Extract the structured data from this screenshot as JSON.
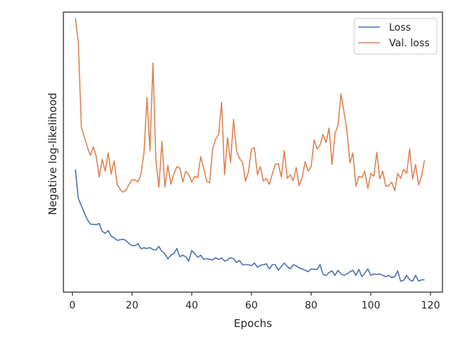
{
  "chart_data": {
    "type": "line",
    "xlabel": "Epochs",
    "ylabel": "Negative log-likelihood",
    "xlim": [
      -3,
      124
    ],
    "ylim": [
      0,
      100
    ],
    "xticks": [
      0,
      20,
      40,
      60,
      80,
      100,
      120
    ],
    "yticks_shown": false,
    "grid": false,
    "legend_position": "top-right",
    "series": [
      {
        "name": "Loss",
        "color": "#4c72b0",
        "x": [
          1,
          2,
          3,
          4,
          5,
          6,
          7,
          8,
          9,
          10,
          11,
          12,
          13,
          14,
          15,
          16,
          17,
          18,
          19,
          20,
          21,
          22,
          23,
          24,
          25,
          26,
          27,
          28,
          29,
          30,
          31,
          32,
          33,
          34,
          35,
          36,
          37,
          38,
          39,
          40,
          41,
          42,
          43,
          44,
          45,
          46,
          47,
          48,
          49,
          50,
          51,
          52,
          53,
          54,
          55,
          56,
          57,
          58,
          59,
          60,
          61,
          62,
          63,
          64,
          65,
          66,
          67,
          68,
          69,
          70,
          71,
          72,
          73,
          74,
          75,
          76,
          77,
          78,
          79,
          80,
          81,
          82,
          83,
          84,
          85,
          86,
          87,
          88,
          89,
          90,
          91,
          92,
          93,
          94,
          95,
          96,
          97,
          98,
          99,
          100,
          101,
          102,
          103,
          104,
          105,
          106,
          107,
          108,
          109,
          110,
          111,
          112,
          113,
          114,
          115,
          116,
          117,
          118
        ],
        "y": [
          43.8,
          33.4,
          30.9,
          28.4,
          25.9,
          24.3,
          24.2,
          24.1,
          24.5,
          21.7,
          21.0,
          22.0,
          20.0,
          19.4,
          18.5,
          18.7,
          18.9,
          18.4,
          17.3,
          16.6,
          16.6,
          17.3,
          15.5,
          15.8,
          15.6,
          15.9,
          15.2,
          15.1,
          16.3,
          14.5,
          13.7,
          11.9,
          13.2,
          13.7,
          15.6,
          12.7,
          13.2,
          12.6,
          11.1,
          14.9,
          13.7,
          12.4,
          13.2,
          11.7,
          12.0,
          11.7,
          11.5,
          12.3,
          11.7,
          12.2,
          11.1,
          11.5,
          12.3,
          12.0,
          10.6,
          11.3,
          9.8,
          9.8,
          9.8,
          9.4,
          10.4,
          8.9,
          9.6,
          9.8,
          10.1,
          8.3,
          9.8,
          9.8,
          7.8,
          9.1,
          10.4,
          9.1,
          8.3,
          9.8,
          9.4,
          8.6,
          8.3,
          7.8,
          7.3,
          8.3,
          8.1,
          8.1,
          9.8,
          6.3,
          6.0,
          7.0,
          7.6,
          6.0,
          7.8,
          6.5,
          6.0,
          6.5,
          7.3,
          7.8,
          6.0,
          8.1,
          5.5,
          6.8,
          8.3,
          6.0,
          6.5,
          6.3,
          6.5,
          6.0,
          5.5,
          6.0,
          5.2,
          5.5,
          7.6,
          3.9,
          4.2,
          6.0,
          4.4,
          3.9,
          6.0,
          3.9,
          4.4,
          4.4
        ]
      },
      {
        "name": "Val. loss",
        "color": "#dd8452",
        "x": [
          1,
          2,
          3,
          4,
          5,
          6,
          7,
          8,
          9,
          10,
          11,
          12,
          13,
          14,
          15,
          16,
          17,
          18,
          19,
          20,
          21,
          22,
          23,
          24,
          25,
          26,
          27,
          28,
          29,
          30,
          31,
          32,
          33,
          34,
          35,
          36,
          37,
          38,
          39,
          40,
          41,
          42,
          43,
          44,
          45,
          46,
          47,
          48,
          49,
          50,
          51,
          52,
          53,
          54,
          55,
          56,
          57,
          58,
          59,
          60,
          61,
          62,
          63,
          64,
          65,
          66,
          67,
          68,
          69,
          70,
          71,
          72,
          73,
          74,
          75,
          76,
          77,
          78,
          79,
          80,
          81,
          82,
          83,
          84,
          85,
          86,
          87,
          88,
          89,
          90,
          91,
          92,
          93,
          94,
          95,
          96,
          97,
          98,
          99,
          100,
          101,
          102,
          103,
          104,
          105,
          106,
          107,
          108,
          109,
          110,
          111,
          112,
          113,
          114,
          115,
          116,
          117,
          118
        ],
        "y": [
          97.9,
          89.1,
          58.9,
          55.5,
          51.9,
          48.9,
          51.9,
          48.4,
          41.1,
          47.4,
          43.2,
          49.7,
          42.2,
          46.9,
          38.5,
          36.7,
          35.7,
          36.4,
          38.5,
          40.1,
          40.1,
          39.3,
          42.2,
          49.7,
          69.5,
          50.5,
          81.8,
          46.6,
          37.5,
          53.9,
          37.5,
          45.3,
          38.5,
          42.2,
          44.8,
          44.3,
          39.3,
          43.2,
          41.9,
          39.3,
          41.4,
          40.9,
          48.4,
          44.3,
          39.6,
          39.1,
          51.1,
          54.7,
          56.3,
          67.7,
          41.9,
          55.2,
          46.4,
          61.7,
          50.5,
          47.7,
          46.4,
          39.6,
          43.0,
          51.1,
          51.6,
          41.9,
          44.8,
          39.6,
          40.6,
          38.5,
          42.2,
          45.6,
          45.9,
          41.1,
          50.5,
          40.6,
          41.9,
          39.8,
          44.5,
          38.0,
          41.1,
          46.6,
          43.2,
          44.8,
          54.4,
          51.1,
          52.6,
          56.3,
          53.4,
          58.6,
          45.6,
          56.6,
          59.6,
          70.8,
          64.5,
          57.6,
          46.1,
          49.7,
          37.8,
          41.4,
          40.9,
          43.2,
          37.0,
          42.4,
          41.4,
          49.9,
          40.4,
          43.2,
          37.8,
          38.0,
          39.3,
          36.2,
          42.4,
          40.6,
          43.8,
          42.4,
          51.1,
          40.4,
          45.6,
          38.3,
          41.4,
          47.2
        ]
      }
    ]
  }
}
